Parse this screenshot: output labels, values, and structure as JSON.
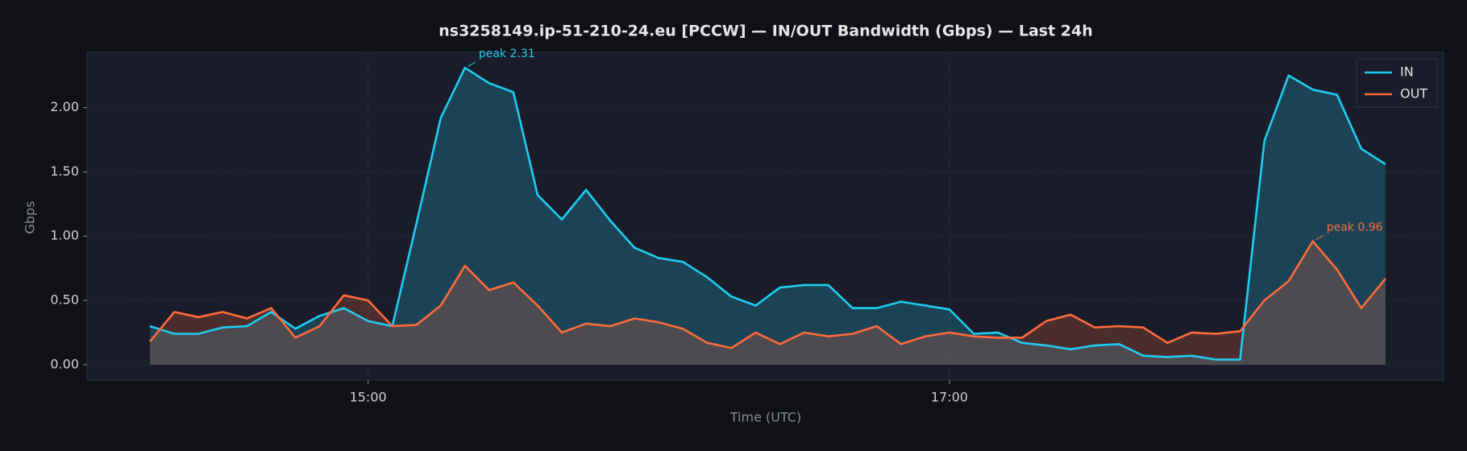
{
  "chart_data": {
    "type": "line",
    "title": "ns3258149.ip-51-210-24.eu [PCCW] — IN/OUT Bandwidth (Gbps) — Last 24h",
    "xlabel": "Time (UTC)",
    "ylabel": "Gbps",
    "x": [
      "14:15",
      "14:20",
      "14:25",
      "14:30",
      "14:35",
      "14:40",
      "14:45",
      "14:50",
      "14:55",
      "15:00",
      "15:05",
      "15:10",
      "15:15",
      "15:20",
      "15:25",
      "15:30",
      "15:35",
      "15:40",
      "15:45",
      "15:50",
      "15:55",
      "16:00",
      "16:05",
      "16:10",
      "16:15",
      "16:20",
      "16:25",
      "16:30",
      "16:35",
      "16:40",
      "16:45",
      "16:50",
      "16:55",
      "17:00",
      "17:05",
      "17:10",
      "17:15",
      "17:20",
      "17:25",
      "17:30",
      "17:35",
      "17:40",
      "17:45",
      "17:50",
      "17:55",
      "18:00",
      "18:05",
      "18:10",
      "18:15",
      "18:20",
      "18:25",
      "18:30"
    ],
    "series": [
      {
        "name": "IN",
        "color": "#1fcdf2",
        "values": [
          0.3,
          0.24,
          0.24,
          0.29,
          0.3,
          0.41,
          0.28,
          0.38,
          0.44,
          0.34,
          0.3,
          1.1,
          1.92,
          2.31,
          2.19,
          2.12,
          1.32,
          1.13,
          1.36,
          1.12,
          0.91,
          0.83,
          0.8,
          0.68,
          0.53,
          0.46,
          0.6,
          0.62,
          0.62,
          0.44,
          0.44,
          0.49,
          0.46,
          0.43,
          0.24,
          0.25,
          0.17,
          0.15,
          0.12,
          0.15,
          0.16,
          0.07,
          0.06,
          0.07,
          0.04,
          0.04,
          1.74,
          2.25,
          2.14,
          2.1,
          1.68,
          1.56
        ]
      },
      {
        "name": "OUT",
        "color": "#ff6b3d",
        "values": [
          0.18,
          0.41,
          0.37,
          0.41,
          0.36,
          0.44,
          0.21,
          0.3,
          0.54,
          0.5,
          0.3,
          0.31,
          0.46,
          0.77,
          0.58,
          0.64,
          0.46,
          0.25,
          0.32,
          0.3,
          0.36,
          0.33,
          0.28,
          0.17,
          0.13,
          0.25,
          0.16,
          0.25,
          0.22,
          0.24,
          0.3,
          0.16,
          0.22,
          0.25,
          0.22,
          0.21,
          0.21,
          0.34,
          0.39,
          0.29,
          0.3,
          0.29,
          0.17,
          0.25,
          0.24,
          0.26,
          0.5,
          0.65,
          0.96,
          0.74,
          0.44,
          0.67
        ]
      }
    ],
    "annotations": [
      {
        "text": "peak 2.31",
        "x": "15:20",
        "y": 2.31,
        "color": "#1fcdf2"
      },
      {
        "text": "peak 0.96",
        "x": "18:15",
        "y": 0.96,
        "color": "#ff6b3d"
      }
    ],
    "xlim": [
      "14:02",
      "18:42"
    ],
    "xticks": [
      "15:00",
      "17:00"
    ],
    "ylim": [
      -0.12,
      2.43
    ],
    "yticks": [
      {
        "value": 0,
        "label": "0.00"
      },
      {
        "value": 0.5,
        "label": "0.50"
      },
      {
        "value": 1,
        "label": "1.00"
      },
      {
        "value": 1.5,
        "label": "1.50"
      },
      {
        "value": 2,
        "label": "2.00"
      }
    ],
    "grid": true,
    "legend": "upper right"
  }
}
